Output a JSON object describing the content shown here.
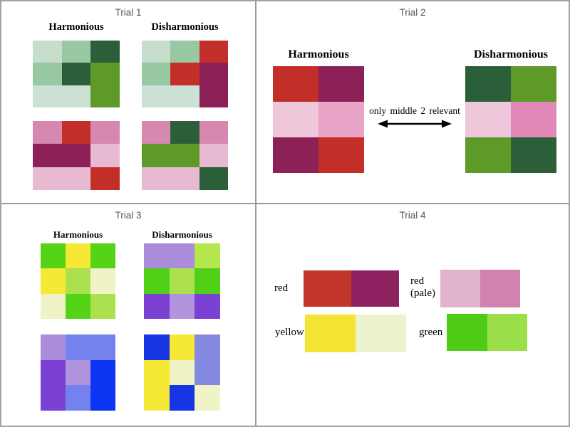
{
  "frame": {
    "background": "#ffffff",
    "border_color": "#a3a3a3",
    "divider_color": "#9a9a9a",
    "title_color": "#565656"
  },
  "trial1": {
    "title": "Trial 1",
    "harmonious_label": "Harmonious",
    "disharmonious_label": "Disharmonious",
    "grids": {
      "harmonious_top": [
        [
          "#c6decb",
          "#98c8a1",
          "#2b5f39"
        ],
        [
          "#98c8a1",
          "#2b5f39",
          "#5e9a28"
        ],
        [
          "#cbe1d5",
          "#cbe1d5",
          "#5e9a28"
        ]
      ],
      "disharmonious_top": [
        [
          "#c6decb",
          "#98c8a1",
          "#c42e29"
        ],
        [
          "#98c8a1",
          "#c42e29",
          "#8c2158"
        ],
        [
          "#cbe1d5",
          "#cbe1d5",
          "#8c2158"
        ]
      ],
      "harmonious_bottom": [
        [
          "#d688b0",
          "#c42e29",
          "#d688b0"
        ],
        [
          "#8c2158",
          "#8c2158",
          "#e7bad1"
        ],
        [
          "#e7bad1",
          "#e7bad1",
          "#c42e29"
        ]
      ],
      "disharmonious_bottom": [
        [
          "#d688b0",
          "#2b5f39",
          "#d688b0"
        ],
        [
          "#5e9a28",
          "#5e9a28",
          "#e7bad1"
        ],
        [
          "#e7bad1",
          "#e7bad1",
          "#2b5f39"
        ]
      ]
    }
  },
  "trial2": {
    "title": "Trial 2",
    "harmonious_label": "Harmonious",
    "disharmonious_label": "Disharmonious",
    "annotation": "only middle 2 relevant",
    "grids": {
      "harmonious": [
        [
          "#c42e29",
          "#8c2158"
        ],
        [
          "#eec8da",
          "#e8a4c6"
        ],
        [
          "#8c2158",
          "#c42e29"
        ]
      ],
      "disharmonious": [
        [
          "#2b5f39",
          "#5e9a28"
        ],
        [
          "#eec8da",
          "#e289b9"
        ],
        [
          "#5e9a28",
          "#2b5f39"
        ]
      ]
    }
  },
  "trial3": {
    "title": "Trial 3",
    "harmonious_label": "Harmonious",
    "disharmonious_label": "Disharmonious",
    "grids": {
      "harmonious_top": [
        [
          "#55d316",
          "#f6e935",
          "#55d316"
        ],
        [
          "#f6e935",
          "#ace04f",
          "#eff3c5"
        ],
        [
          "#eff3c5",
          "#55d316",
          "#ace04f"
        ]
      ],
      "disharmonious_top": [
        [
          "#aa8cda",
          "#aa8cda",
          "#b4e84d"
        ],
        [
          "#50d117",
          "#ace04f",
          "#50d117"
        ],
        [
          "#7b41d3",
          "#b294de",
          "#7b41d3"
        ]
      ],
      "harmonious_bottom": [
        [
          "#aa8cda",
          "#7581ec",
          "#7581ec"
        ],
        [
          "#7b41d3",
          "#b294de",
          "#0d36f4"
        ],
        [
          "#7b41d3",
          "#7581ec",
          "#0d36f4"
        ]
      ],
      "disharmonious_bottom": [
        [
          "#1635e4",
          "#f6e935",
          "#8289de"
        ],
        [
          "#f6e935",
          "#eff3c5",
          "#8289de"
        ],
        [
          "#f6e935",
          "#1635e4",
          "#eff3c5"
        ]
      ]
    }
  },
  "trial4": {
    "title": "Trial 4",
    "rows": [
      {
        "label": "red",
        "colors": [
          [
            "#c2352a",
            "#8e2260"
          ]
        ]
      },
      {
        "label": "red (pale)",
        "colors": [
          [
            "#e2b4cc",
            "#d381ae"
          ]
        ]
      },
      {
        "label": "yellow",
        "colors": [
          [
            "#f3e531",
            "#eef3cf"
          ]
        ]
      },
      {
        "label": "green",
        "colors": [
          [
            "#4fcc15",
            "#9bdf4b"
          ]
        ]
      }
    ]
  }
}
